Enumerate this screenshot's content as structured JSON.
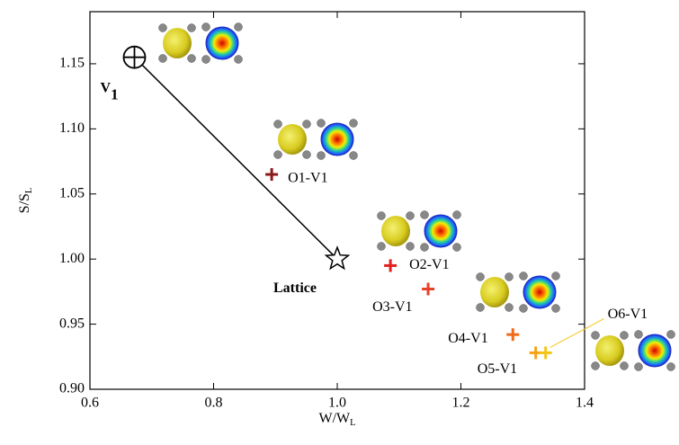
{
  "chart_data": {
    "type": "scatter",
    "xlabel": {
      "text": "W/W",
      "sub": "L"
    },
    "ylabel": {
      "text": "S/S",
      "sub": "L"
    },
    "xlim": [
      0.6,
      1.4
    ],
    "ylim": [
      0.9,
      1.19
    ],
    "xticks": [
      0.6,
      0.8,
      {
        "value": 1,
        "label": "1.0"
      },
      1.2,
      1.4
    ],
    "yticks": [
      {
        "value": 0.9,
        "label": "0.90"
      },
      0.95,
      {
        "value": 1,
        "label": "1.00"
      },
      1.05,
      {
        "value": 1.1,
        "label": "1.10"
      },
      1.15
    ],
    "series": [
      {
        "name": {
          "text": "V",
          "sub": "1"
        },
        "color": "#000000",
        "marker": "circle-plus",
        "x": [
          0.672
        ],
        "values": [
          1.155
        ]
      },
      {
        "name": "Lattice",
        "color": "#000000",
        "marker": "star",
        "x": [
          1.0
        ],
        "values": [
          1.0
        ]
      },
      {
        "name": "O1-V1",
        "color": "#8b1a1a",
        "marker": "plus",
        "x": [
          0.894
        ],
        "values": [
          1.065
        ]
      },
      {
        "name": "O2-V1",
        "color": "#e02020",
        "marker": "plus",
        "x": [
          1.086
        ],
        "values": [
          0.995
        ]
      },
      {
        "name": "O3-V1",
        "color": "#e8402a",
        "marker": "plus",
        "x": [
          1.147
        ],
        "values": [
          0.977
        ]
      },
      {
        "name": "O4-V1",
        "color": "#f06a1a",
        "marker": "plus",
        "x": [
          1.284
        ],
        "values": [
          0.942
        ]
      },
      {
        "name": "O5-V1",
        "color": "#f5a21a",
        "marker": "plus",
        "x": [
          1.321
        ],
        "values": [
          0.928
        ]
      },
      {
        "name": "O6-V1",
        "color": "#f5c518",
        "marker": "plus",
        "x": [
          1.337
        ],
        "values": [
          0.928
        ]
      }
    ]
  }
}
